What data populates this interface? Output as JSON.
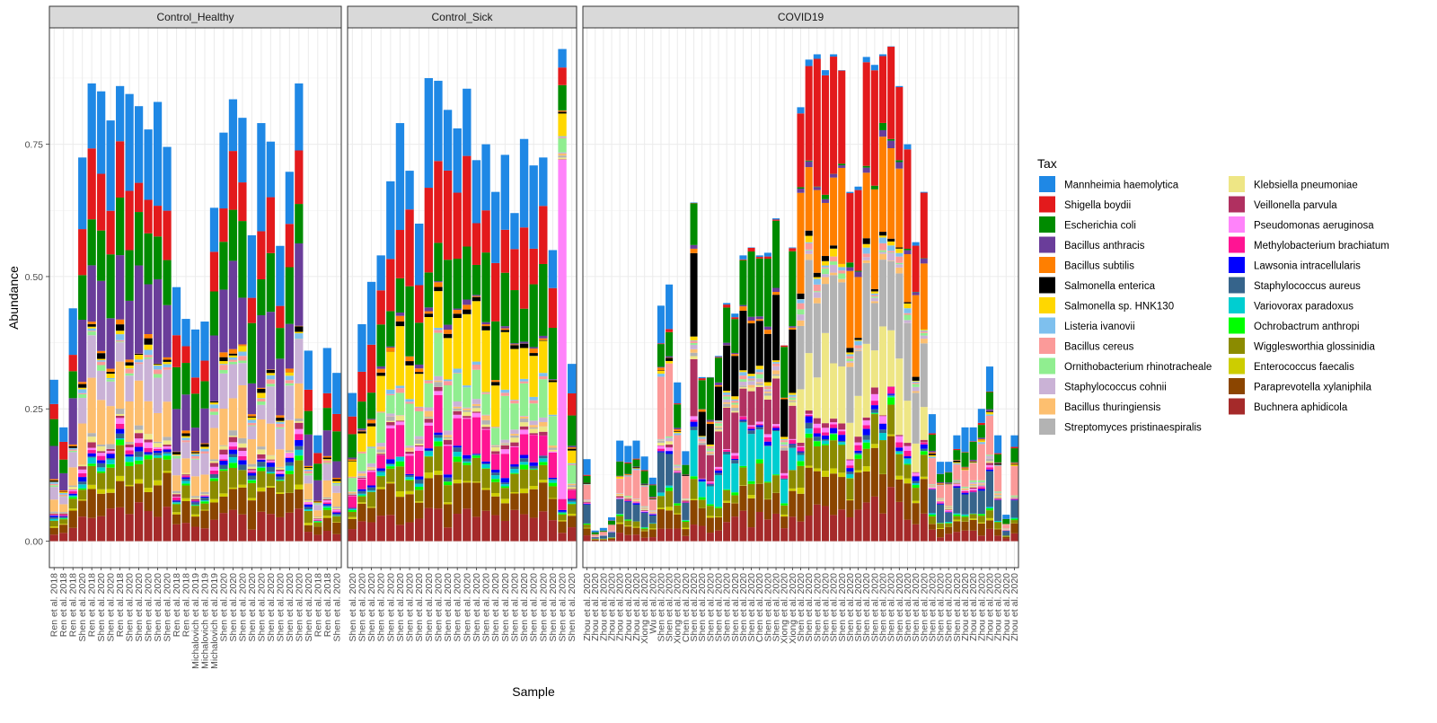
{
  "chart_data": {
    "type": "bar",
    "stacked": true,
    "facet_wrap": true,
    "xlabel": "Sample",
    "ylabel": "Abundance",
    "ylim": [
      -0.05,
      0.97
    ],
    "yticks": [
      0,
      0.25,
      0.5,
      0.75
    ],
    "ytick_labels": [
      "0.00",
      "0.25",
      "0.50",
      "0.75"
    ],
    "grid": true,
    "legend_position": "right",
    "legend_title": "Tax",
    "taxa": [
      {
        "name": "Mannheimia haemolytica",
        "color": "#1F88E5"
      },
      {
        "name": "Shigella boydii",
        "color": "#E31A1C"
      },
      {
        "name": "Escherichia coli",
        "color": "#008B00"
      },
      {
        "name": "Bacillus anthracis",
        "color": "#6A3D9A"
      },
      {
        "name": "Bacillus subtilis",
        "color": "#FF7F00"
      },
      {
        "name": "Salmonella enterica",
        "color": "#000000"
      },
      {
        "name": "Salmonella sp. HNK130",
        "color": "#FFD700"
      },
      {
        "name": "Listeria ivanovii",
        "color": "#7EC0EE"
      },
      {
        "name": "Bacillus cereus",
        "color": "#FB9A99"
      },
      {
        "name": "Ornithobacterium rhinotracheale",
        "color": "#90EE90"
      },
      {
        "name": "Staphylococcus cohnii",
        "color": "#CAB2D6"
      },
      {
        "name": "Bacillus thuringiensis",
        "color": "#FDBF6F"
      },
      {
        "name": "Streptomyces pristinaespiralis",
        "color": "#B3B3B3"
      },
      {
        "name": "Klebsiella pneumoniae",
        "color": "#EEE685"
      },
      {
        "name": "Veillonella parvula",
        "color": "#B03060"
      },
      {
        "name": "Pseudomonas aeruginosa",
        "color": "#FF83FA"
      },
      {
        "name": "Methylobacterium brachiatum",
        "color": "#FF1493"
      },
      {
        "name": "Lawsonia intracellularis",
        "color": "#0000FF"
      },
      {
        "name": "Staphylococcus aureus",
        "color": "#36648B"
      },
      {
        "name": "Variovorax paradoxus",
        "color": "#00CED1"
      },
      {
        "name": "Ochrobactrum anthropi",
        "color": "#00FF00"
      },
      {
        "name": "Wigglesworthia glossinidia",
        "color": "#8B8B00"
      },
      {
        "name": "Enterococcus faecalis",
        "color": "#CDCD00"
      },
      {
        "name": "Paraprevotella xylaniphila",
        "color": "#8B4500"
      },
      {
        "name": "Buchnera aphidicola",
        "color": "#A52A2A"
      }
    ],
    "facets": [
      {
        "title": "Control_Healthy",
        "samples": [
          "Ren et al. 2018",
          "Ren et al. 2018",
          "Ren et al. 2018",
          "Shen et al. 2020",
          "Ren et al. 2018",
          "Shen et al. 2020",
          "Shen et al. 2020",
          "Ren et al. 2018",
          "Shen et al. 2020",
          "Shen et al. 2020",
          "Shen et al. 2020",
          "Shen et al. 2020",
          "Shen et al. 2020",
          "Ren et al. 2018",
          "Ren et al. 2018",
          "Michalovich et al. 2019",
          "Michalovich et al. 2019",
          "Michalovich et al. 2019",
          "Shen et al. 2020",
          "Shen et al. 2020",
          "Shen et al. 2020",
          "Shen et al. 2020",
          "Shen et al. 2020",
          "Shen et al. 2020",
          "Shen et al. 2020",
          "Shen et al. 2020",
          "Shen et al. 2020",
          "Shen et al. 2020",
          "Ren et al. 2018",
          "Ren et al. 2018",
          "Shen et al. 2020"
        ],
        "totals": [
          0.305,
          0.215,
          0.44,
          0.725,
          0.865,
          0.85,
          0.795,
          0.86,
          0.845,
          0.822,
          0.778,
          0.83,
          0.745,
          0.48,
          0.42,
          0.4,
          0.415,
          0.63,
          0.772,
          0.835,
          0.8,
          0.578,
          0.79,
          0.755,
          0.558,
          0.698,
          0.865,
          0.36,
          0.2,
          0.365,
          0.318
        ]
      },
      {
        "title": "Control_Sick",
        "samples": [
          "Shen et al. 2020",
          "Shen et al. 2020",
          "Shen et al. 2020",
          "Shen et al. 2020",
          "Shen et al. 2020",
          "Shen et al. 2020",
          "Shen et al. 2020",
          "Shen et al. 2020",
          "Shen et al. 2020",
          "Shen et al. 2020",
          "Shen et al. 2020",
          "Shen et al. 2020",
          "Shen et al. 2020",
          "Shen et al. 2020",
          "Shen et al. 2020",
          "Shen et al. 2020",
          "Shen et al. 2020",
          "Shen et al. 2020",
          "Shen et al. 2020",
          "Shen et al. 2020",
          "Shen et al. 2020",
          "Shen et al. 2020",
          "Shen et al. 2020",
          "Shen et al. 2020"
        ],
        "totals": [
          0.28,
          0.41,
          0.49,
          0.54,
          0.68,
          0.79,
          0.7,
          0.6,
          0.875,
          0.87,
          0.815,
          0.78,
          0.855,
          0.72,
          0.75,
          0.66,
          0.73,
          0.62,
          0.76,
          0.71,
          0.725,
          0.55,
          0.93,
          0.335
        ]
      },
      {
        "title": "COVID19",
        "samples": [
          "Zhou et al. 2020",
          "Zhou et al. 2020",
          "Zhou et al. 2020",
          "Zhou et al. 2020",
          "Zhou et al. 2020",
          "Zhou et al. 2020",
          "Zhou et al. 2020",
          "Xiong et al. 2020",
          "Wu et al. 2020",
          "Shen et al. 2020",
          "Shen et al. 2020",
          "Xiong et al. 2020",
          "Chen et al. 2020",
          "Shen et al. 2020",
          "Shen et al. 2020",
          "Shen et al. 2020",
          "Shen et al. 2020",
          "Shen et al. 2020",
          "Shen et al. 2020",
          "Shen et al. 2020",
          "Shen et al. 2020",
          "Chen et al. 2020",
          "Shen et al. 2020",
          "Shen et al. 2020",
          "Xiong et al. 2020",
          "Xiong et al. 2020",
          "Shen et al. 2020",
          "Shen et al. 2020",
          "Shen et al. 2020",
          "Shen et al. 2020",
          "Shen et al. 2020",
          "Shen et al. 2020",
          "Shen et al. 2020",
          "Shen et al. 2020",
          "Shen et al. 2020",
          "Shen et al. 2020",
          "Shen et al. 2020",
          "Shen et al. 2020",
          "Shen et al. 2020",
          "Shen et al. 2020",
          "Shen et al. 2020",
          "Shen et al. 2020",
          "Shen et al. 2020",
          "Shen et al. 2020",
          "Shen et al. 2020",
          "Shen et al. 2020",
          "Zhou et al. 2020",
          "Zhou et al. 2020",
          "Zhou et al. 2020",
          "Zhou et al. 2020",
          "Zhou et al. 2020",
          "Zhou et al. 2020",
          "Zhou et al. 2020"
        ],
        "totals": [
          0.155,
          0.02,
          0.025,
          0.045,
          0.19,
          0.18,
          0.19,
          0.16,
          0.12,
          0.445,
          0.485,
          0.3,
          0.17,
          0.64,
          0.31,
          0.31,
          0.35,
          0.45,
          0.43,
          0.54,
          0.555,
          0.54,
          0.545,
          0.61,
          0.37,
          0.555,
          0.82,
          0.91,
          0.92,
          0.89,
          0.92,
          0.89,
          0.66,
          0.67,
          0.915,
          0.9,
          0.92,
          0.935,
          0.86,
          0.75,
          0.565,
          0.66,
          0.24,
          0.15,
          0.15,
          0.2,
          0.215,
          0.215,
          0.25,
          0.33,
          0.2,
          0.05,
          0.2
        ]
      }
    ]
  }
}
